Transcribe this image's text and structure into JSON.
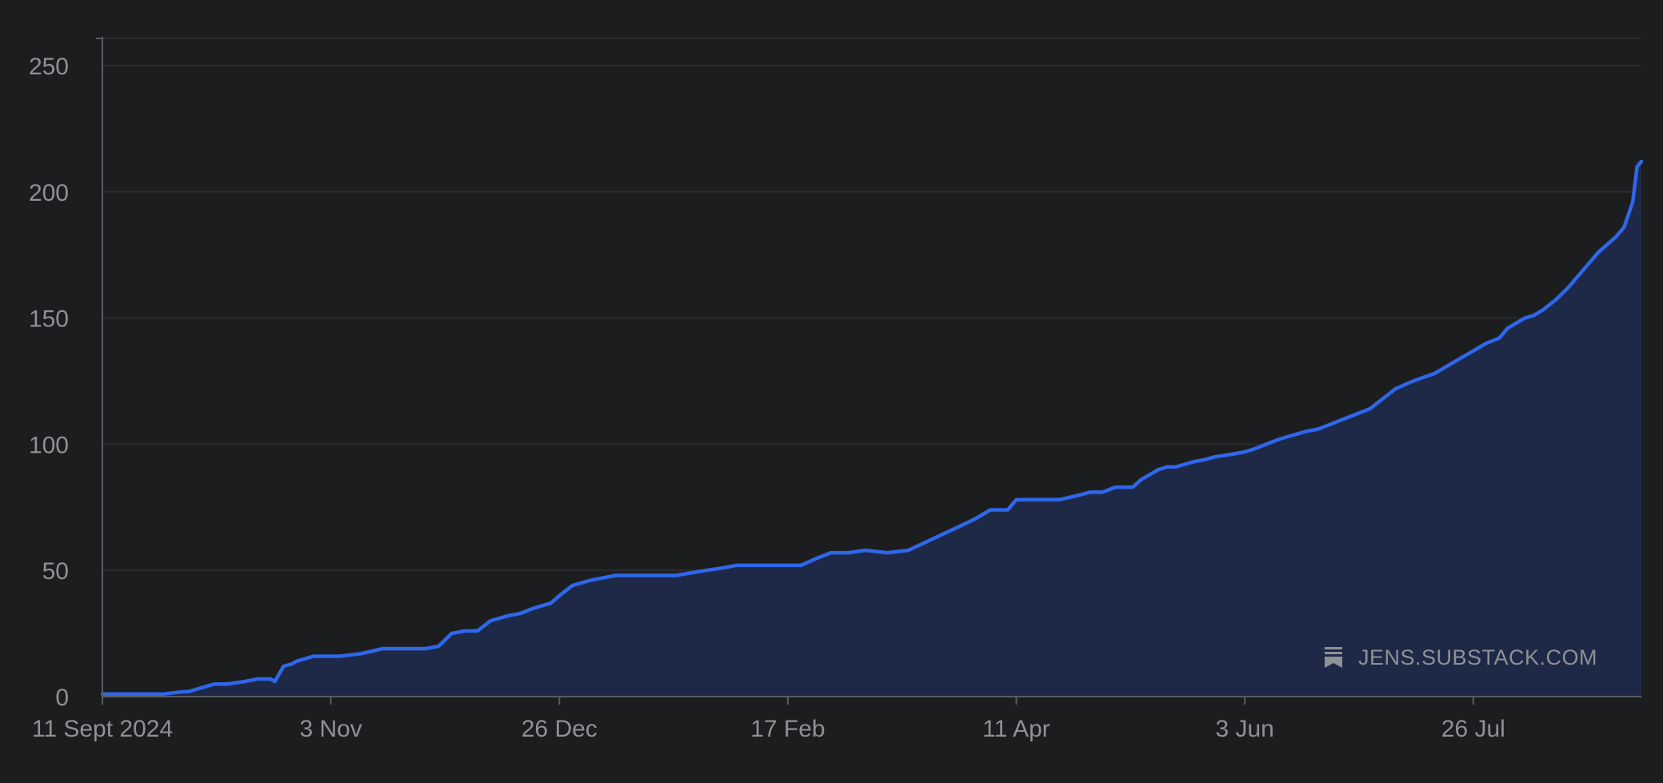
{
  "chart_data": {
    "type": "area",
    "title": "",
    "xlabel": "",
    "ylabel": "",
    "x_tick_labels": [
      "11 Sept 2024",
      "3 Nov",
      "26 Dec",
      "17 Feb",
      "11 Apr",
      "3 Jun",
      "26 Jul"
    ],
    "x_tick_dates": [
      "2024-09-11",
      "2024-11-03",
      "2024-12-26",
      "2025-02-17",
      "2025-04-11",
      "2025-06-03",
      "2025-07-26"
    ],
    "xlim": [
      "2024-09-11",
      "2025-09-03"
    ],
    "y_ticks": [
      0,
      50,
      100,
      150,
      200,
      250
    ],
    "ylim": [
      0,
      250
    ],
    "grid": true,
    "series": [
      {
        "x": [
          "2024-09-11",
          "2024-09-18",
          "2024-09-25",
          "2024-09-30",
          "2024-10-01",
          "2024-10-03",
          "2024-10-07",
          "2024-10-10",
          "2024-10-14",
          "2024-10-17",
          "2024-10-20",
          "2024-10-21",
          "2024-10-23",
          "2024-10-25",
          "2024-10-26",
          "2024-10-30",
          "2024-11-01",
          "2024-11-03",
          "2024-11-05",
          "2024-11-10",
          "2024-11-15",
          "2024-11-20",
          "2024-11-25",
          "2024-11-28",
          "2024-12-01",
          "2024-12-04",
          "2024-12-07",
          "2024-12-10",
          "2024-12-14",
          "2024-12-17",
          "2024-12-20",
          "2024-12-24",
          "2024-12-26",
          "2024-12-29",
          "2025-01-02",
          "2025-01-08",
          "2025-01-15",
          "2025-01-22",
          "2025-01-29",
          "2025-02-02",
          "2025-02-05",
          "2025-02-10",
          "2025-02-14",
          "2025-02-17",
          "2025-02-20",
          "2025-02-24",
          "2025-02-27",
          "2025-03-03",
          "2025-03-07",
          "2025-03-12",
          "2025-03-17",
          "2025-03-22",
          "2025-03-27",
          "2025-04-01",
          "2025-04-05",
          "2025-04-09",
          "2025-04-11",
          "2025-04-13",
          "2025-04-17",
          "2025-04-21",
          "2025-04-26",
          "2025-04-28",
          "2025-05-01",
          "2025-05-04",
          "2025-05-08",
          "2025-05-10",
          "2025-05-12",
          "2025-05-14",
          "2025-05-16",
          "2025-05-18",
          "2025-05-20",
          "2025-05-22",
          "2025-05-25",
          "2025-05-27",
          "2025-05-31",
          "2025-06-03",
          "2025-06-05",
          "2025-06-08",
          "2025-06-11",
          "2025-06-13",
          "2025-06-15",
          "2025-06-17",
          "2025-06-20",
          "2025-06-23",
          "2025-06-26",
          "2025-06-29",
          "2025-07-02",
          "2025-07-05",
          "2025-07-08",
          "2025-07-12",
          "2025-07-17",
          "2025-07-20",
          "2025-07-23",
          "2025-07-25",
          "2025-07-27",
          "2025-07-29",
          "2025-08-01",
          "2025-08-03",
          "2025-08-05",
          "2025-08-07",
          "2025-08-09",
          "2025-08-11",
          "2025-08-14",
          "2025-08-17",
          "2025-08-20",
          "2025-08-24",
          "2025-08-28",
          "2025-08-30",
          "2025-09-01",
          "2025-09-02",
          "2025-09-03"
        ],
        "y": [
          1,
          1,
          1,
          2,
          2,
          3,
          5,
          5,
          6,
          7,
          7,
          6,
          12,
          13,
          14,
          16,
          16,
          16,
          16,
          17,
          19,
          19,
          19,
          20,
          25,
          26,
          26,
          30,
          32,
          33,
          35,
          37,
          40,
          44,
          46,
          48,
          48,
          48,
          50,
          51,
          52,
          52,
          52,
          52,
          52,
          55,
          57,
          57,
          58,
          57,
          58,
          62,
          66,
          70,
          74,
          74,
          78,
          78,
          78,
          78,
          80,
          81,
          81,
          83,
          83,
          86,
          88,
          90,
          91,
          91,
          92,
          93,
          94,
          95,
          96,
          97,
          98,
          100,
          102,
          103,
          104,
          105,
          106,
          108,
          110,
          112,
          114,
          118,
          122,
          125,
          128,
          131,
          134,
          136,
          138,
          140,
          142,
          146,
          148,
          150,
          151,
          153,
          157,
          162,
          168,
          176,
          182,
          186,
          196,
          210,
          212
        ]
      }
    ]
  },
  "watermark": {
    "text": "JENS.SUBSTACK.COM",
    "icon": "substack-bookmark-icon"
  },
  "colors": {
    "background": "#1c1d1f",
    "line": "#2f67eb",
    "fill": "#1f2a4a",
    "grid": "#2a2c30",
    "axis": "#5a5c62",
    "text": "#8f9196"
  }
}
